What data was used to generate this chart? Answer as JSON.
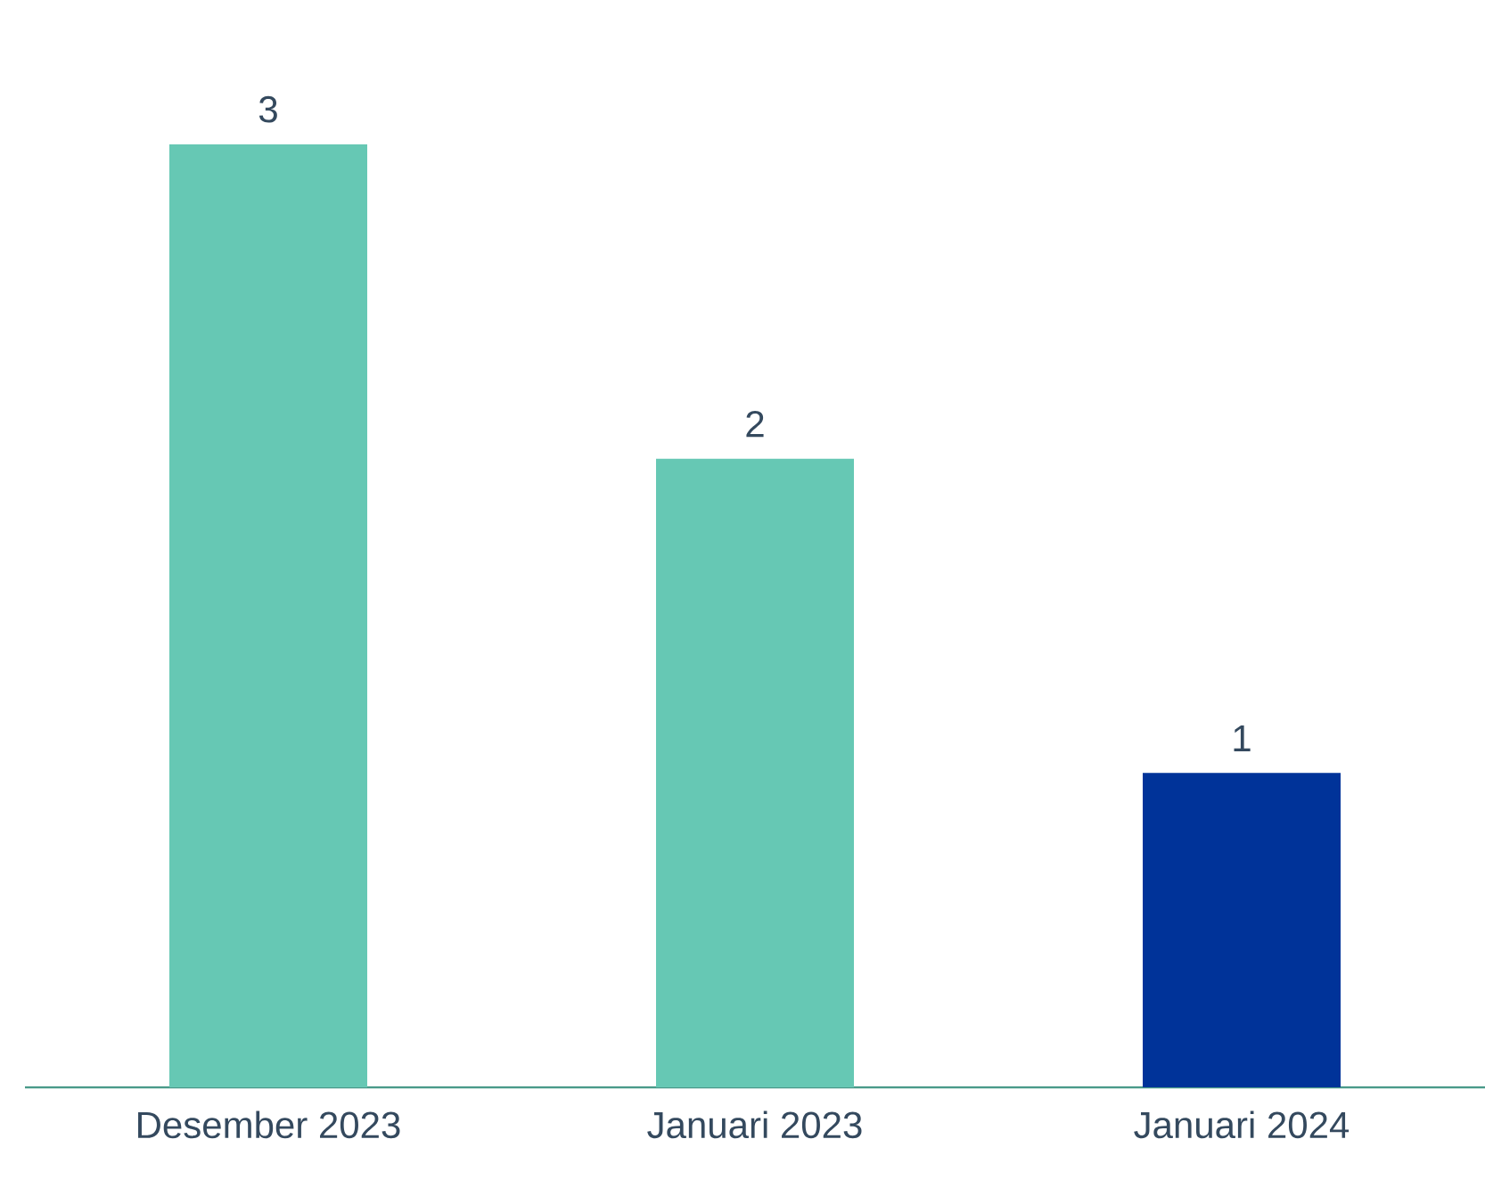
{
  "chart_data": {
    "type": "bar",
    "categories": [
      "Desember 2023",
      "Januari 2023",
      "Januari 2024"
    ],
    "values": [
      3,
      2,
      1
    ],
    "colors": [
      "#66c8b4",
      "#66c8b4",
      "#003399"
    ],
    "data_labels": true
  }
}
